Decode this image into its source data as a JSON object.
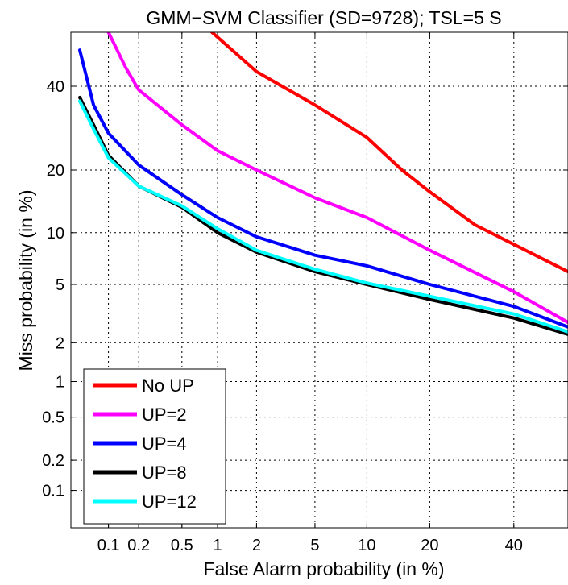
{
  "chart_data": {
    "type": "line",
    "title": "GMM−SVM Classifier (SD=9728); TSL=5 S",
    "xlabel": "False Alarm probability (in %)",
    "ylabel": "Miss probability (in %)",
    "scale": "normal-deviate (DET)",
    "xlim": [
      0.04,
      55
    ],
    "ylim": [
      0.04,
      55
    ],
    "grid": true,
    "legend_position": "bottom-left",
    "x_ticks": [
      {
        "value": 0.1,
        "label": "0.1"
      },
      {
        "value": 0.2,
        "label": "0.2"
      },
      {
        "value": 0.5,
        "label": "0.5"
      },
      {
        "value": 1,
        "label": "1"
      },
      {
        "value": 2,
        "label": "2"
      },
      {
        "value": 5,
        "label": "5"
      },
      {
        "value": 10,
        "label": "10"
      },
      {
        "value": 20,
        "label": "20"
      },
      {
        "value": 40,
        "label": "40"
      }
    ],
    "y_ticks": [
      {
        "value": 0.1,
        "label": "0.1"
      },
      {
        "value": 0.2,
        "label": "0.2"
      },
      {
        "value": 0.5,
        "label": "0.5"
      },
      {
        "value": 1,
        "label": "1"
      },
      {
        "value": 2,
        "label": "2"
      },
      {
        "value": 5,
        "label": "5"
      },
      {
        "value": 10,
        "label": "10"
      },
      {
        "value": 20,
        "label": "20"
      },
      {
        "value": 40,
        "label": "40"
      }
    ],
    "series": [
      {
        "name": "No UP",
        "color": "#ff0000",
        "points": [
          [
            0.9,
            55
          ],
          [
            2,
            44
          ],
          [
            5,
            35
          ],
          [
            10,
            27
          ],
          [
            15,
            20
          ],
          [
            20,
            16
          ],
          [
            30,
            11
          ],
          [
            55,
            6
          ]
        ]
      },
      {
        "name": "UP=2",
        "color": "#ff00ff",
        "points": [
          [
            0.1,
            55
          ],
          [
            0.15,
            45
          ],
          [
            0.2,
            39
          ],
          [
            0.5,
            30
          ],
          [
            1,
            24
          ],
          [
            2,
            20
          ],
          [
            5,
            15
          ],
          [
            10,
            12
          ],
          [
            20,
            8
          ],
          [
            40,
            4.5
          ],
          [
            55,
            2.8
          ]
        ]
      },
      {
        "name": "UP=4",
        "color": "#0000ff",
        "points": [
          [
            0.05,
            50
          ],
          [
            0.07,
            35
          ],
          [
            0.1,
            28
          ],
          [
            0.2,
            21
          ],
          [
            0.5,
            15.5
          ],
          [
            1,
            12
          ],
          [
            2,
            9.5
          ],
          [
            5,
            7.5
          ],
          [
            10,
            6.5
          ],
          [
            20,
            5
          ],
          [
            40,
            3.6
          ],
          [
            55,
            2.6
          ]
        ]
      },
      {
        "name": "UP=8",
        "color": "#000000",
        "points": [
          [
            0.05,
            37
          ],
          [
            0.07,
            30
          ],
          [
            0.1,
            23
          ],
          [
            0.2,
            17
          ],
          [
            0.5,
            13.5
          ],
          [
            1,
            10
          ],
          [
            2,
            7.8
          ],
          [
            5,
            6
          ],
          [
            10,
            5
          ],
          [
            20,
            4
          ],
          [
            40,
            3
          ],
          [
            55,
            2.3
          ]
        ]
      },
      {
        "name": "UP=12",
        "color": "#00ffff",
        "points": [
          [
            0.05,
            36
          ],
          [
            0.07,
            29
          ],
          [
            0.1,
            22.5
          ],
          [
            0.2,
            17
          ],
          [
            0.5,
            13.7
          ],
          [
            1,
            10.5
          ],
          [
            2,
            8
          ],
          [
            5,
            6.2
          ],
          [
            10,
            5.1
          ],
          [
            20,
            4.2
          ],
          [
            40,
            3.2
          ],
          [
            55,
            2.4
          ]
        ]
      }
    ]
  }
}
